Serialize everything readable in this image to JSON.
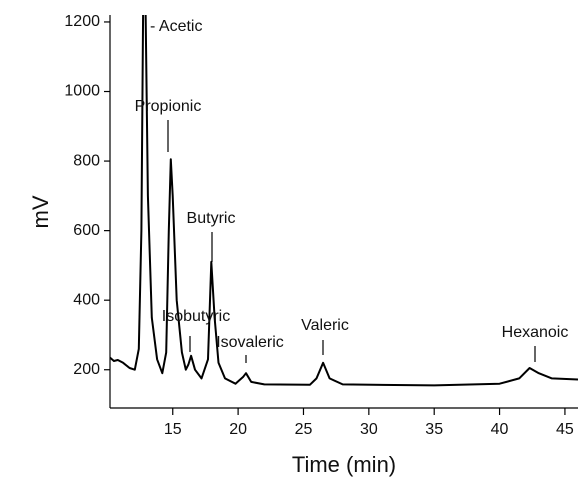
{
  "chart_data": {
    "type": "line",
    "x_label": "Time (min)",
    "y_label": "mV",
    "xlim": [
      10.2,
      46
    ],
    "ylim": [
      90,
      1220
    ],
    "xticks": [
      15,
      20,
      25,
      30,
      35,
      40,
      45
    ],
    "yticks": [
      200,
      400,
      600,
      800,
      1000,
      1200
    ],
    "color": "#000000",
    "x": [
      10.2,
      10.5,
      10.8,
      11.2,
      11.7,
      12.1,
      12.4,
      12.6,
      12.75,
      12.9,
      13.1,
      13.4,
      13.8,
      14.2,
      14.5,
      14.7,
      14.85,
      15.0,
      15.3,
      15.7,
      16.0,
      16.2,
      16.4,
      16.7,
      17.2,
      17.7,
      17.95,
      18.2,
      18.5,
      19.0,
      19.8,
      20.4,
      20.6,
      21.0,
      22.0,
      25.5,
      26.0,
      26.5,
      27.0,
      28.0,
      35.0,
      40.0,
      41.5,
      42.3,
      43.0,
      44.0,
      46.0
    ],
    "values": [
      235,
      225,
      228,
      220,
      205,
      200,
      260,
      600,
      1300,
      1300,
      700,
      350,
      230,
      190,
      250,
      600,
      805,
      700,
      400,
      250,
      200,
      215,
      240,
      200,
      175,
      230,
      510,
      350,
      220,
      175,
      160,
      180,
      190,
      165,
      158,
      157,
      175,
      220,
      175,
      158,
      155,
      160,
      175,
      205,
      190,
      175,
      172
    ],
    "annotations": [
      "- Acetic",
      "Propionic",
      "Butyric",
      "Isobutyric",
      "Isovaleric",
      "Valeric",
      "Hexanoic"
    ]
  }
}
